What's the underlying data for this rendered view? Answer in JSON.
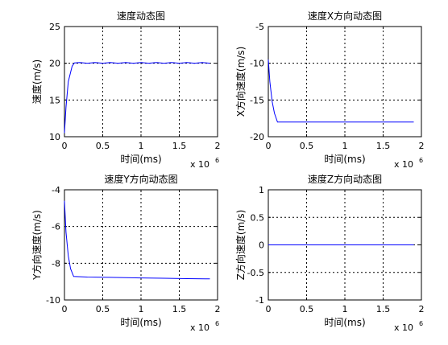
{
  "chart_data": [
    {
      "type": "line",
      "title": "速度动态图",
      "xlabel": "时间(ms)",
      "ylabel": "速度(m/s)",
      "x_multiplier_label": "x 10",
      "x_multiplier_exp": "6",
      "xlim": [
        0,
        2
      ],
      "ylim": [
        10,
        25
      ],
      "xticks": [
        0,
        0.5,
        1,
        1.5,
        2
      ],
      "xtick_labels": [
        "0",
        "0.5",
        "1",
        "1.5",
        "2"
      ],
      "yticks": [
        10,
        15,
        20,
        25
      ],
      "ytick_labels": [
        "10",
        "15",
        "20",
        "25"
      ],
      "grid": true,
      "line_color": "#0000ff",
      "series": [
        {
          "x": [
            0,
            0.02,
            0.05,
            0.1,
            0.13,
            0.2,
            0.3,
            0.4,
            0.5,
            0.6,
            0.7,
            0.8,
            0.9,
            1.0,
            1.1,
            1.2,
            1.3,
            1.4,
            1.5,
            1.6,
            1.7,
            1.8,
            1.9
          ],
          "y": [
            10.5,
            14,
            17.5,
            19.6,
            20.05,
            20.1,
            20.0,
            20.1,
            20.0,
            20.1,
            20.0,
            20.1,
            20.0,
            20.1,
            20.0,
            20.1,
            20.0,
            20.1,
            20.0,
            20.1,
            20.0,
            20.1,
            20.0
          ]
        }
      ]
    },
    {
      "type": "line",
      "title": "速度X方向动态图",
      "xlabel": "时间(ms)",
      "ylabel": "X方向速度(m/s)",
      "x_multiplier_label": "x 10",
      "x_multiplier_exp": "6",
      "xlim": [
        0,
        2
      ],
      "ylim": [
        -20,
        -5
      ],
      "xticks": [
        0,
        0.5,
        1,
        1.5,
        2
      ],
      "xtick_labels": [
        "0",
        "0.5",
        "1",
        "1.5",
        "2"
      ],
      "yticks": [
        -20,
        -15,
        -10,
        -5
      ],
      "ytick_labels": [
        "-20",
        "-15",
        "-10",
        "-5"
      ],
      "grid": true,
      "line_color": "#0000ff",
      "series": [
        {
          "x": [
            0,
            0.02,
            0.05,
            0.08,
            0.12,
            0.2,
            0.5,
            1.0,
            1.5,
            1.9
          ],
          "y": [
            -9.5,
            -12.5,
            -15.2,
            -16.8,
            -18.0,
            -18.0,
            -18.0,
            -18.0,
            -18.0,
            -18.0
          ]
        }
      ]
    },
    {
      "type": "line",
      "title": "速度Y方向动态图",
      "xlabel": "时间(ms)",
      "ylabel": "Y方向速度(m/s)",
      "x_multiplier_label": "x 10",
      "x_multiplier_exp": "6",
      "xlim": [
        0,
        2
      ],
      "ylim": [
        -10,
        -4
      ],
      "xticks": [
        0,
        0.5,
        1,
        1.5,
        2
      ],
      "xtick_labels": [
        "0",
        "0.5",
        "1",
        "1.5",
        "2"
      ],
      "yticks": [
        -10,
        -8,
        -6,
        -4
      ],
      "ytick_labels": [
        "-10",
        "-8",
        "-6",
        "-4"
      ],
      "grid": true,
      "line_color": "#0000ff",
      "series": [
        {
          "x": [
            0,
            0.02,
            0.05,
            0.08,
            0.12,
            0.3,
            0.6,
            1.0,
            1.3,
            1.6,
            1.9
          ],
          "y": [
            -4.6,
            -6.3,
            -7.6,
            -8.3,
            -8.72,
            -8.75,
            -8.77,
            -8.8,
            -8.82,
            -8.84,
            -8.85
          ]
        }
      ]
    },
    {
      "type": "line",
      "title": "速度Z方向动态图",
      "xlabel": "时间(ms)",
      "ylabel": "Z方向速度(m/s)",
      "x_multiplier_label": "x 10",
      "x_multiplier_exp": "6",
      "xlim": [
        0,
        2
      ],
      "ylim": [
        -1,
        1
      ],
      "xticks": [
        0,
        0.5,
        1,
        1.5,
        2
      ],
      "xtick_labels": [
        "0",
        "0.5",
        "1",
        "1.5",
        "2"
      ],
      "yticks": [
        -1,
        -0.5,
        0,
        0.5,
        1
      ],
      "ytick_labels": [
        "-1",
        "-0.5",
        "0",
        "0.5",
        "1"
      ],
      "grid": true,
      "line_color": "#0000ff",
      "series": [
        {
          "x": [
            0,
            1.9
          ],
          "y": [
            0,
            0
          ]
        }
      ]
    }
  ]
}
